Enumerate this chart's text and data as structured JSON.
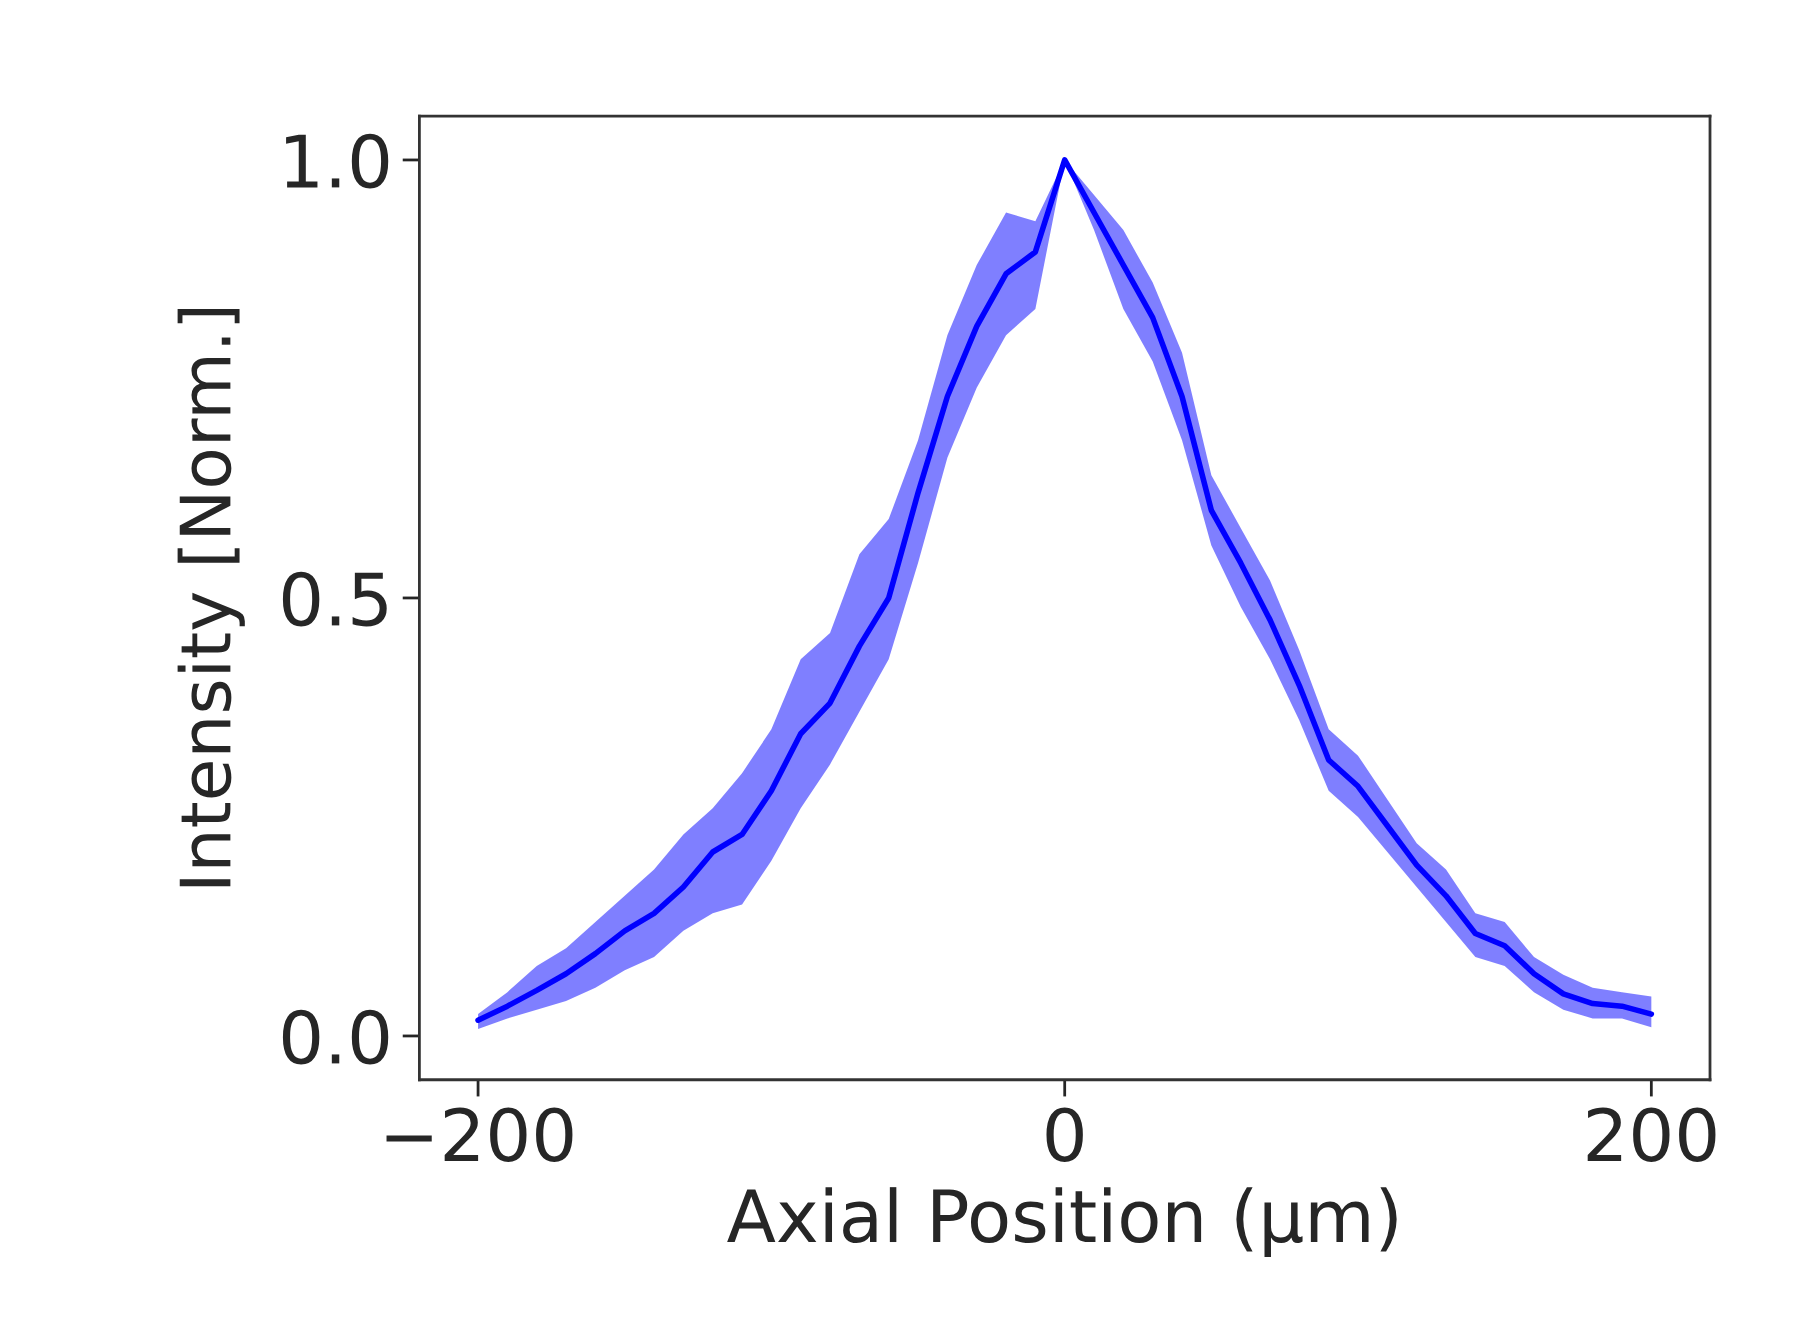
{
  "chart_data": {
    "type": "line",
    "xlabel": "Axial Position (µm)",
    "ylabel": "Intensity [Norm.]",
    "xlim": [
      -220,
      220
    ],
    "ylim": [
      -0.05,
      1.05
    ],
    "xticks": [
      {
        "value": -200,
        "label": "−200"
      },
      0,
      200
    ],
    "yticks": [
      {
        "value": 0,
        "label": "0.0"
      },
      {
        "value": 0.5,
        "label": "0.5"
      },
      {
        "value": 1,
        "label": "1.0"
      }
    ],
    "x": [
      -200,
      -190,
      -180,
      -170,
      -160,
      -150,
      -140,
      -130,
      -120,
      -110,
      -100,
      -90,
      -80,
      -70,
      -60,
      -50,
      -40,
      -30,
      -20,
      -10,
      0,
      10,
      20,
      30,
      40,
      50,
      60,
      70,
      80,
      90,
      100,
      110,
      120,
      130,
      140,
      150,
      160,
      170,
      180,
      190,
      200
    ],
    "series": [
      {
        "color": "#0000ff",
        "values": [
          0.018,
          0.034,
          0.052,
          0.071,
          0.094,
          0.12,
          0.14,
          0.17,
          0.21,
          0.23,
          0.28,
          0.345,
          0.38,
          0.445,
          0.5,
          0.62,
          0.73,
          0.81,
          0.87,
          0.895,
          1.0,
          0.94,
          0.88,
          0.82,
          0.73,
          0.6,
          0.54,
          0.475,
          0.4,
          0.315,
          0.285,
          0.24,
          0.195,
          0.16,
          0.117,
          0.103,
          0.071,
          0.048,
          0.037,
          0.034,
          0.025
        ],
        "lower": [
          0.008,
          0.02,
          0.03,
          0.04,
          0.055,
          0.075,
          0.09,
          0.12,
          0.14,
          0.15,
          0.2,
          0.26,
          0.31,
          0.37,
          0.43,
          0.54,
          0.66,
          0.74,
          0.8,
          0.83,
          1.0,
          0.92,
          0.83,
          0.77,
          0.68,
          0.56,
          0.49,
          0.43,
          0.36,
          0.28,
          0.25,
          0.21,
          0.17,
          0.13,
          0.09,
          0.08,
          0.05,
          0.03,
          0.02,
          0.02,
          0.01
        ],
        "upper": [
          0.025,
          0.05,
          0.08,
          0.1,
          0.13,
          0.16,
          0.19,
          0.23,
          0.26,
          0.3,
          0.35,
          0.43,
          0.46,
          0.55,
          0.59,
          0.68,
          0.8,
          0.88,
          0.94,
          0.93,
          1.0,
          0.96,
          0.92,
          0.86,
          0.78,
          0.64,
          0.58,
          0.52,
          0.44,
          0.35,
          0.32,
          0.27,
          0.22,
          0.19,
          0.14,
          0.13,
          0.09,
          0.07,
          0.055,
          0.05,
          0.045
        ]
      }
    ],
    "grid": false,
    "line_style": "solid",
    "marker": "none"
  }
}
